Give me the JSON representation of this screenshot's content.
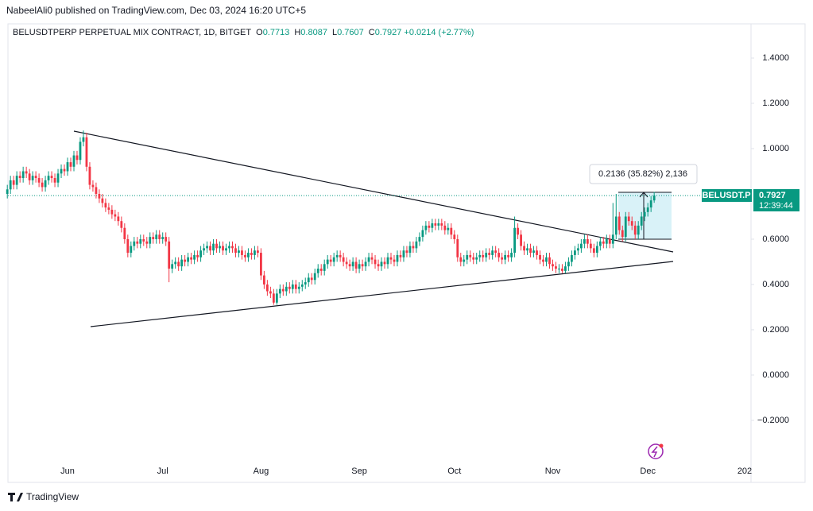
{
  "chart_data": {
    "type": "candlestick",
    "published": "NabeelAli0 published on TradingView.com, Dec 03, 2024 16:20 UTC+5",
    "title": "BELUSDTPERP PERPETUAL MIX CONTRACT, 1D, BITGET",
    "ohlc_legend": [
      {
        "label": "O",
        "value": 0.7713
      },
      {
        "label": "H",
        "value": 0.8087
      },
      {
        "label": "L",
        "value": 0.7607
      },
      {
        "label": "C",
        "value": 0.7927
      }
    ],
    "change": "+0.0214 (+2.77%)",
    "up_color": "#089981",
    "down_color": "#f23645",
    "ylim": [
      -0.474,
      1.551
    ],
    "yticks": [
      {
        "value": 1.4,
        "label": "1.4000"
      },
      {
        "value": 1.2,
        "label": "1.2000"
      },
      {
        "value": 1.0,
        "label": "1.0000"
      },
      {
        "value": 0.6,
        "label": "0.6000"
      },
      {
        "value": 0.4,
        "label": "0.4000"
      },
      {
        "value": 0.2,
        "label": "0.2000"
      },
      {
        "value": 0,
        "label": "0.0000"
      },
      {
        "value": -0.2,
        "label": "−0.2000"
      }
    ],
    "categories": [
      null,
      null,
      null,
      null,
      null,
      null,
      null,
      null,
      null,
      null,
      null,
      null,
      null,
      null,
      null,
      null,
      null,
      null,
      null,
      "Jun",
      null,
      null,
      null,
      null,
      null,
      null,
      null,
      null,
      null,
      null,
      null,
      null,
      null,
      null,
      null,
      null,
      null,
      null,
      null,
      null,
      null,
      null,
      null,
      null,
      null,
      null,
      null,
      null,
      null,
      "Jul",
      null,
      null,
      null,
      null,
      null,
      null,
      null,
      null,
      null,
      null,
      null,
      null,
      null,
      null,
      null,
      null,
      null,
      null,
      null,
      null,
      null,
      null,
      null,
      null,
      null,
      null,
      null,
      null,
      null,
      null,
      "Aug",
      null,
      null,
      null,
      null,
      null,
      null,
      null,
      null,
      null,
      null,
      null,
      null,
      null,
      null,
      null,
      null,
      null,
      null,
      null,
      null,
      null,
      null,
      null,
      null,
      null,
      null,
      null,
      null,
      null,
      null,
      "Sep",
      null,
      null,
      null,
      null,
      null,
      null,
      null,
      null,
      null,
      null,
      null,
      null,
      null,
      null,
      null,
      null,
      null,
      null,
      null,
      null,
      null,
      null,
      null,
      null,
      null,
      null,
      null,
      null,
      null,
      "Oct",
      null,
      null,
      null,
      null,
      null,
      null,
      null,
      null,
      null,
      null,
      null,
      null,
      null,
      null,
      null,
      null,
      null,
      null,
      null,
      null,
      null,
      null,
      null,
      null,
      null,
      null,
      null,
      null,
      null,
      null,
      "Nov",
      null,
      null,
      null,
      null,
      null,
      null,
      null,
      null,
      null,
      null,
      null,
      null,
      null,
      null,
      null,
      null,
      null,
      null,
      null,
      null,
      null,
      null,
      null,
      null,
      null,
      null,
      null,
      null,
      null,
      "Dec",
      null,
      null
    ],
    "x_extra_label": "202",
    "ohlc": [
      [
        0.8,
        0.84,
        0.78,
        0.82
      ],
      [
        0.82,
        0.88,
        0.8,
        0.86
      ],
      [
        0.86,
        0.88,
        0.82,
        0.84
      ],
      [
        0.84,
        0.9,
        0.82,
        0.88
      ],
      [
        0.88,
        0.9,
        0.85,
        0.87
      ],
      [
        0.87,
        0.92,
        0.85,
        0.9
      ],
      [
        0.9,
        0.92,
        0.87,
        0.89
      ],
      [
        0.89,
        0.91,
        0.84,
        0.86
      ],
      [
        0.86,
        0.9,
        0.84,
        0.88
      ],
      [
        0.88,
        0.9,
        0.85,
        0.87
      ],
      [
        0.87,
        0.89,
        0.83,
        0.85
      ],
      [
        0.85,
        0.87,
        0.81,
        0.83
      ],
      [
        0.83,
        0.88,
        0.81,
        0.86
      ],
      [
        0.86,
        0.9,
        0.84,
        0.88
      ],
      [
        0.88,
        0.9,
        0.85,
        0.87
      ],
      [
        0.87,
        0.89,
        0.83,
        0.85
      ],
      [
        0.85,
        0.91,
        0.83,
        0.89
      ],
      [
        0.89,
        0.93,
        0.87,
        0.91
      ],
      [
        0.91,
        0.93,
        0.88,
        0.9
      ],
      [
        0.9,
        0.96,
        0.88,
        0.94
      ],
      [
        0.94,
        0.96,
        0.9,
        0.92
      ],
      [
        0.92,
        0.99,
        0.9,
        0.97
      ],
      [
        0.97,
        0.99,
        0.93,
        0.95
      ],
      [
        0.95,
        1.05,
        0.93,
        1.03
      ],
      [
        1.03,
        1.08,
        1.01,
        1.05
      ],
      [
        1.05,
        1.07,
        0.9,
        0.92
      ],
      [
        0.92,
        0.94,
        0.82,
        0.84
      ],
      [
        0.84,
        0.86,
        0.81,
        0.83
      ],
      [
        0.83,
        0.85,
        0.78,
        0.8
      ],
      [
        0.8,
        0.82,
        0.76,
        0.78
      ],
      [
        0.78,
        0.8,
        0.74,
        0.76
      ],
      [
        0.76,
        0.78,
        0.72,
        0.74
      ],
      [
        0.74,
        0.76,
        0.71,
        0.73
      ],
      [
        0.73,
        0.75,
        0.69,
        0.71
      ],
      [
        0.71,
        0.73,
        0.68,
        0.7
      ],
      [
        0.7,
        0.72,
        0.66,
        0.68
      ],
      [
        0.68,
        0.7,
        0.63,
        0.65
      ],
      [
        0.65,
        0.67,
        0.58,
        0.6
      ],
      [
        0.6,
        0.62,
        0.52,
        0.54
      ],
      [
        0.54,
        0.59,
        0.52,
        0.57
      ],
      [
        0.57,
        0.61,
        0.55,
        0.59
      ],
      [
        0.59,
        0.61,
        0.56,
        0.58
      ],
      [
        0.58,
        0.62,
        0.56,
        0.6
      ],
      [
        0.6,
        0.62,
        0.57,
        0.59
      ],
      [
        0.59,
        0.61,
        0.56,
        0.58
      ],
      [
        0.58,
        0.63,
        0.56,
        0.61
      ],
      [
        0.61,
        0.63,
        0.58,
        0.6
      ],
      [
        0.6,
        0.64,
        0.58,
        0.62
      ],
      [
        0.62,
        0.64,
        0.58,
        0.6
      ],
      [
        0.6,
        0.63,
        0.58,
        0.61
      ],
      [
        0.61,
        0.63,
        0.57,
        0.59
      ],
      [
        0.59,
        0.61,
        0.41,
        0.47
      ],
      [
        0.47,
        0.51,
        0.45,
        0.49
      ],
      [
        0.49,
        0.52,
        0.47,
        0.5
      ],
      [
        0.5,
        0.52,
        0.46,
        0.48
      ],
      [
        0.48,
        0.53,
        0.46,
        0.51
      ],
      [
        0.51,
        0.53,
        0.48,
        0.5
      ],
      [
        0.5,
        0.54,
        0.48,
        0.52
      ],
      [
        0.52,
        0.54,
        0.49,
        0.51
      ],
      [
        0.51,
        0.55,
        0.49,
        0.53
      ],
      [
        0.53,
        0.55,
        0.5,
        0.52
      ],
      [
        0.52,
        0.57,
        0.5,
        0.55
      ],
      [
        0.55,
        0.58,
        0.53,
        0.56
      ],
      [
        0.56,
        0.59,
        0.54,
        0.57
      ],
      [
        0.57,
        0.59,
        0.53,
        0.55
      ],
      [
        0.55,
        0.6,
        0.53,
        0.58
      ],
      [
        0.58,
        0.6,
        0.54,
        0.56
      ],
      [
        0.56,
        0.59,
        0.54,
        0.57
      ],
      [
        0.57,
        0.59,
        0.53,
        0.55
      ],
      [
        0.55,
        0.58,
        0.53,
        0.56
      ],
      [
        0.56,
        0.59,
        0.54,
        0.57
      ],
      [
        0.57,
        0.59,
        0.54,
        0.56
      ],
      [
        0.56,
        0.58,
        0.52,
        0.54
      ],
      [
        0.54,
        0.57,
        0.52,
        0.55
      ],
      [
        0.55,
        0.57,
        0.51,
        0.53
      ],
      [
        0.53,
        0.55,
        0.5,
        0.52
      ],
      [
        0.52,
        0.56,
        0.5,
        0.54
      ],
      [
        0.54,
        0.56,
        0.51,
        0.53
      ],
      [
        0.53,
        0.57,
        0.51,
        0.55
      ],
      [
        0.55,
        0.57,
        0.52,
        0.54
      ],
      [
        0.54,
        0.56,
        0.42,
        0.44
      ],
      [
        0.44,
        0.46,
        0.38,
        0.4
      ],
      [
        0.4,
        0.42,
        0.35,
        0.37
      ],
      [
        0.37,
        0.39,
        0.34,
        0.36
      ],
      [
        0.36,
        0.38,
        0.31,
        0.32
      ],
      [
        0.32,
        0.38,
        0.31,
        0.36
      ],
      [
        0.36,
        0.4,
        0.34,
        0.38
      ],
      [
        0.38,
        0.4,
        0.35,
        0.37
      ],
      [
        0.37,
        0.41,
        0.35,
        0.39
      ],
      [
        0.39,
        0.41,
        0.36,
        0.38
      ],
      [
        0.38,
        0.42,
        0.36,
        0.4
      ],
      [
        0.4,
        0.42,
        0.36,
        0.38
      ],
      [
        0.38,
        0.41,
        0.36,
        0.39
      ],
      [
        0.39,
        0.42,
        0.37,
        0.4
      ],
      [
        0.4,
        0.43,
        0.38,
        0.41
      ],
      [
        0.41,
        0.45,
        0.39,
        0.43
      ],
      [
        0.43,
        0.45,
        0.4,
        0.42
      ],
      [
        0.42,
        0.47,
        0.4,
        0.45
      ],
      [
        0.45,
        0.49,
        0.43,
        0.47
      ],
      [
        0.47,
        0.49,
        0.44,
        0.46
      ],
      [
        0.46,
        0.51,
        0.44,
        0.49
      ],
      [
        0.49,
        0.53,
        0.47,
        0.51
      ],
      [
        0.51,
        0.53,
        0.48,
        0.5
      ],
      [
        0.5,
        0.54,
        0.48,
        0.52
      ],
      [
        0.52,
        0.55,
        0.5,
        0.53
      ],
      [
        0.53,
        0.55,
        0.5,
        0.52
      ],
      [
        0.52,
        0.54,
        0.48,
        0.5
      ],
      [
        0.5,
        0.52,
        0.47,
        0.49
      ],
      [
        0.49,
        0.51,
        0.46,
        0.48
      ],
      [
        0.48,
        0.52,
        0.46,
        0.5
      ],
      [
        0.5,
        0.52,
        0.45,
        0.47
      ],
      [
        0.47,
        0.51,
        0.45,
        0.49
      ],
      [
        0.49,
        0.51,
        0.46,
        0.48
      ],
      [
        0.48,
        0.52,
        0.46,
        0.5
      ],
      [
        0.5,
        0.54,
        0.48,
        0.52
      ],
      [
        0.52,
        0.54,
        0.49,
        0.51
      ],
      [
        0.51,
        0.53,
        0.47,
        0.49
      ],
      [
        0.49,
        0.51,
        0.46,
        0.48
      ],
      [
        0.48,
        0.52,
        0.46,
        0.5
      ],
      [
        0.5,
        0.52,
        0.47,
        0.49
      ],
      [
        0.49,
        0.54,
        0.47,
        0.52
      ],
      [
        0.52,
        0.54,
        0.49,
        0.51
      ],
      [
        0.51,
        0.53,
        0.48,
        0.5
      ],
      [
        0.5,
        0.55,
        0.48,
        0.53
      ],
      [
        0.53,
        0.55,
        0.5,
        0.52
      ],
      [
        0.52,
        0.57,
        0.5,
        0.55
      ],
      [
        0.55,
        0.57,
        0.52,
        0.54
      ],
      [
        0.54,
        0.59,
        0.52,
        0.57
      ],
      [
        0.57,
        0.59,
        0.54,
        0.56
      ],
      [
        0.56,
        0.61,
        0.54,
        0.59
      ],
      [
        0.59,
        0.63,
        0.57,
        0.61
      ],
      [
        0.61,
        0.66,
        0.59,
        0.64
      ],
      [
        0.64,
        0.68,
        0.62,
        0.66
      ],
      [
        0.66,
        0.68,
        0.63,
        0.65
      ],
      [
        0.65,
        0.69,
        0.63,
        0.67
      ],
      [
        0.67,
        0.69,
        0.64,
        0.66
      ],
      [
        0.66,
        0.69,
        0.64,
        0.67
      ],
      [
        0.67,
        0.69,
        0.64,
        0.66
      ],
      [
        0.66,
        0.68,
        0.62,
        0.64
      ],
      [
        0.64,
        0.67,
        0.62,
        0.65
      ],
      [
        0.65,
        0.67,
        0.6,
        0.62
      ],
      [
        0.62,
        0.64,
        0.58,
        0.6
      ],
      [
        0.6,
        0.62,
        0.5,
        0.52
      ],
      [
        0.52,
        0.54,
        0.48,
        0.5
      ],
      [
        0.5,
        0.53,
        0.48,
        0.51
      ],
      [
        0.51,
        0.55,
        0.49,
        0.53
      ],
      [
        0.53,
        0.55,
        0.5,
        0.52
      ],
      [
        0.52,
        0.54,
        0.49,
        0.51
      ],
      [
        0.51,
        0.54,
        0.49,
        0.52
      ],
      [
        0.52,
        0.55,
        0.5,
        0.53
      ],
      [
        0.53,
        0.55,
        0.5,
        0.52
      ],
      [
        0.52,
        0.56,
        0.5,
        0.54
      ],
      [
        0.54,
        0.56,
        0.51,
        0.53
      ],
      [
        0.53,
        0.57,
        0.51,
        0.55
      ],
      [
        0.55,
        0.57,
        0.52,
        0.54
      ],
      [
        0.54,
        0.56,
        0.5,
        0.52
      ],
      [
        0.52,
        0.54,
        0.49,
        0.51
      ],
      [
        0.51,
        0.55,
        0.49,
        0.53
      ],
      [
        0.53,
        0.55,
        0.5,
        0.52
      ],
      [
        0.52,
        0.56,
        0.5,
        0.54
      ],
      [
        0.54,
        0.7,
        0.52,
        0.65
      ],
      [
        0.65,
        0.67,
        0.6,
        0.62
      ],
      [
        0.62,
        0.64,
        0.55,
        0.57
      ],
      [
        0.57,
        0.59,
        0.53,
        0.55
      ],
      [
        0.55,
        0.58,
        0.53,
        0.56
      ],
      [
        0.56,
        0.58,
        0.52,
        0.54
      ],
      [
        0.54,
        0.57,
        0.52,
        0.55
      ],
      [
        0.55,
        0.57,
        0.51,
        0.53
      ],
      [
        0.53,
        0.55,
        0.49,
        0.51
      ],
      [
        0.51,
        0.53,
        0.48,
        0.5
      ],
      [
        0.5,
        0.54,
        0.48,
        0.52
      ],
      [
        0.52,
        0.54,
        0.47,
        0.49
      ],
      [
        0.49,
        0.51,
        0.46,
        0.48
      ],
      [
        0.48,
        0.5,
        0.45,
        0.47
      ],
      [
        0.47,
        0.49,
        0.45,
        0.47
      ],
      [
        0.47,
        0.49,
        0.45,
        0.46
      ],
      [
        0.46,
        0.5,
        0.45,
        0.48
      ],
      [
        0.48,
        0.52,
        0.46,
        0.5
      ],
      [
        0.5,
        0.55,
        0.48,
        0.53
      ],
      [
        0.53,
        0.57,
        0.51,
        0.55
      ],
      [
        0.55,
        0.58,
        0.53,
        0.56
      ],
      [
        0.56,
        0.6,
        0.54,
        0.58
      ],
      [
        0.58,
        0.62,
        0.56,
        0.6
      ],
      [
        0.6,
        0.62,
        0.56,
        0.58
      ],
      [
        0.58,
        0.6,
        0.54,
        0.56
      ],
      [
        0.56,
        0.58,
        0.52,
        0.54
      ],
      [
        0.54,
        0.59,
        0.52,
        0.57
      ],
      [
        0.57,
        0.61,
        0.55,
        0.59
      ],
      [
        0.59,
        0.61,
        0.56,
        0.58
      ],
      [
        0.58,
        0.62,
        0.56,
        0.6
      ],
      [
        0.6,
        0.62,
        0.56,
        0.58
      ],
      [
        0.58,
        0.76,
        0.56,
        0.62
      ],
      [
        0.62,
        0.8,
        0.6,
        0.7
      ],
      [
        0.7,
        0.72,
        0.62,
        0.64
      ],
      [
        0.64,
        0.66,
        0.59,
        0.61
      ],
      [
        0.61,
        0.72,
        0.59,
        0.7
      ],
      [
        0.7,
        0.72,
        0.66,
        0.68
      ],
      [
        0.68,
        0.7,
        0.64,
        0.66
      ],
      [
        0.66,
        0.68,
        0.6,
        0.62
      ],
      [
        0.62,
        0.68,
        0.6,
        0.66
      ],
      [
        0.66,
        0.72,
        0.64,
        0.7
      ],
      [
        0.7,
        0.74,
        0.68,
        0.72
      ],
      [
        0.72,
        0.76,
        0.7,
        0.74
      ],
      [
        0.74,
        0.79,
        0.72,
        0.7713
      ],
      [
        0.7713,
        0.8087,
        0.7607,
        0.7927
      ]
    ],
    "price_label": {
      "symbol": "BELUSDT.P",
      "price": 0.7927,
      "countdown": "12:39:44"
    },
    "measure_label": "0.2136 (35.82%) 2,136",
    "footer": "TradingView"
  }
}
